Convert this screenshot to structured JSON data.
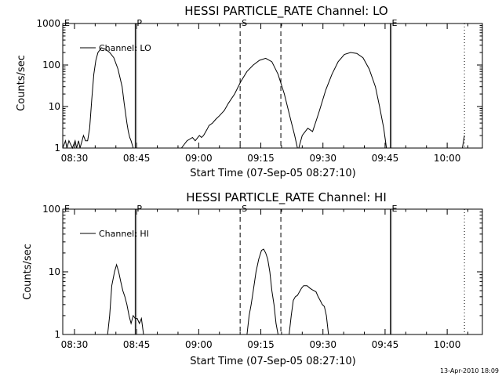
{
  "footer": {
    "date": "13-Apr-2010 18:09"
  },
  "chart_data": [
    {
      "type": "line",
      "title": "HESSI PARTICLE_RATE Channel: LO",
      "xlabel": "Start Time (07-Sep-05 08:27:10)",
      "ylabel": "Counts/sec",
      "yscale": "log",
      "ylim": [
        1,
        1000
      ],
      "xlim": [
        "08:27:10",
        "10:08:30"
      ],
      "x_ticks": [
        "08:30",
        "08:45",
        "09:00",
        "09:15",
        "09:30",
        "09:45",
        "10:00"
      ],
      "y_ticks": [
        "1",
        "10",
        "100",
        "1000"
      ],
      "legend": {
        "entries": [
          "Channel: LO"
        ],
        "position": "top-left"
      },
      "grid": false,
      "markers": [
        {
          "label": "E",
          "time": "08:27:10",
          "style": "solid"
        },
        {
          "label": "P",
          "time": "08:44:40",
          "style": "solid"
        },
        {
          "label": "S",
          "time": "09:10:00",
          "style": "dashed"
        },
        {
          "label": "",
          "time": "09:19:50",
          "style": "dashed"
        },
        {
          "label": "E",
          "time": "09:46:15",
          "style": "solid"
        },
        {
          "label": "",
          "time": "10:04:10",
          "style": "dotted"
        }
      ],
      "series": [
        {
          "name": "Channel: LO",
          "segments": [
            [
              [
                "08:27:10",
                1
              ],
              [
                "08:27:50",
                1.5
              ],
              [
                "08:28:10",
                1
              ],
              [
                "08:28:40",
                1.5
              ],
              [
                "08:29:30",
                1
              ],
              [
                "08:30:10",
                1.5
              ],
              [
                "08:30:30",
                1
              ],
              [
                "08:31:00",
                1.5
              ],
              [
                "08:31:20",
                1
              ],
              [
                "08:31:50",
                1.5
              ],
              [
                "08:32:10",
                2
              ],
              [
                "08:32:40",
                1.5
              ],
              [
                "08:33:10",
                1.5
              ],
              [
                "08:33:40",
                3
              ],
              [
                "08:34:10",
                15
              ],
              [
                "08:34:40",
                60
              ],
              [
                "08:35:10",
                130
              ],
              [
                "08:35:40",
                200
              ],
              [
                "08:36:30",
                260
              ],
              [
                "08:37:30",
                240
              ],
              [
                "08:38:30",
                200
              ],
              [
                "08:39:30",
                150
              ],
              [
                "08:40:30",
                80
              ],
              [
                "08:41:30",
                30
              ],
              [
                "08:42:00",
                12
              ],
              [
                "08:42:40",
                4
              ],
              [
                "08:43:00",
                2.5
              ],
              [
                "08:43:20",
                1.8
              ],
              [
                "08:43:40",
                1.5
              ],
              [
                "08:44:10",
                1
              ]
            ],
            [
              [
                "08:55:50",
                1
              ],
              [
                "08:57:10",
                1.5
              ],
              [
                "08:58:30",
                1.8
              ],
              [
                "08:59:10",
                1.5
              ],
              [
                "09:00:10",
                2
              ],
              [
                "09:00:40",
                1.8
              ],
              [
                "09:01:10",
                2
              ],
              [
                "09:02:00",
                2.8
              ],
              [
                "09:02:30",
                3.5
              ],
              [
                "09:03:20",
                4
              ],
              [
                "09:04:10",
                5
              ],
              [
                "09:05:00",
                6
              ],
              [
                "09:06:10",
                8
              ],
              [
                "09:07:10",
                12
              ],
              [
                "09:08:40",
                20
              ],
              [
                "09:10:10",
                40
              ],
              [
                "09:11:40",
                70
              ],
              [
                "09:13:10",
                100
              ],
              [
                "09:14:40",
                130
              ],
              [
                "09:16:10",
                145
              ],
              [
                "09:17:40",
                120
              ],
              [
                "09:19:10",
                60
              ],
              [
                "09:20:40",
                20
              ],
              [
                "09:22:10",
                5
              ],
              [
                "09:23:10",
                2
              ],
              [
                "09:23:50",
                1
              ]
            ],
            [
              [
                "09:24:10",
                1
              ],
              [
                "09:25:00",
                2
              ],
              [
                "09:26:20",
                3
              ],
              [
                "09:27:30",
                2.5
              ],
              [
                "09:28:30",
                5
              ],
              [
                "09:29:10",
                8
              ],
              [
                "09:30:40",
                25
              ],
              [
                "09:32:10",
                60
              ],
              [
                "09:33:40",
                120
              ],
              [
                "09:35:10",
                180
              ],
              [
                "09:36:40",
                200
              ],
              [
                "09:38:10",
                190
              ],
              [
                "09:39:40",
                150
              ],
              [
                "09:41:10",
                80
              ],
              [
                "09:42:40",
                30
              ],
              [
                "09:43:40",
                10
              ],
              [
                "09:44:40",
                3
              ],
              [
                "09:45:20",
                1
              ]
            ],
            [
              [
                "10:03:40",
                1
              ],
              [
                "10:04:10",
                2
              ]
            ]
          ]
        }
      ]
    },
    {
      "type": "line",
      "title": "HESSI PARTICLE_RATE Channel: HI",
      "xlabel": "Start Time (07-Sep-05 08:27:10)",
      "ylabel": "Counts/sec",
      "yscale": "log",
      "ylim": [
        1,
        100
      ],
      "xlim": [
        "08:27:10",
        "10:08:30"
      ],
      "x_ticks": [
        "08:30",
        "08:45",
        "09:00",
        "09:15",
        "09:30",
        "09:45",
        "10:00"
      ],
      "y_ticks": [
        "1",
        "10",
        "100"
      ],
      "legend": {
        "entries": [
          "Channel: HI"
        ],
        "position": "top-left"
      },
      "grid": false,
      "markers": [
        {
          "label": "E",
          "time": "08:27:10",
          "style": "solid"
        },
        {
          "label": "P",
          "time": "08:44:40",
          "style": "solid"
        },
        {
          "label": "S",
          "time": "09:10:00",
          "style": "dashed"
        },
        {
          "label": "",
          "time": "09:19:50",
          "style": "dashed"
        },
        {
          "label": "E",
          "time": "09:46:15",
          "style": "solid"
        },
        {
          "label": "",
          "time": "10:04:10",
          "style": "dotted"
        }
      ],
      "series": [
        {
          "name": "Channel: HI",
          "segments": [
            [
              [
                "08:38:00",
                1
              ],
              [
                "08:38:30",
                2
              ],
              [
                "08:39:00",
                6
              ],
              [
                "08:39:40",
                10
              ],
              [
                "08:40:10",
                13
              ],
              [
                "08:40:40",
                10
              ],
              [
                "08:41:10",
                7
              ],
              [
                "08:41:40",
                5
              ],
              [
                "08:42:10",
                4
              ],
              [
                "08:42:40",
                3
              ],
              [
                "08:43:10",
                2
              ],
              [
                "08:43:40",
                1.5
              ],
              [
                "08:44:10",
                2
              ],
              [
                "08:44:40",
                1.8
              ],
              [
                "08:45:10",
                1.8
              ],
              [
                "08:45:40",
                1.5
              ],
              [
                "08:46:10",
                1.8
              ],
              [
                "08:46:40",
                1
              ]
            ],
            [
              [
                "09:11:40",
                1
              ],
              [
                "09:12:10",
                2
              ],
              [
                "09:12:40",
                3
              ],
              [
                "09:13:10",
                5
              ],
              [
                "09:13:50",
                10
              ],
              [
                "09:14:30",
                16
              ],
              [
                "09:15:10",
                22
              ],
              [
                "09:15:40",
                23
              ],
              [
                "09:16:10",
                20
              ],
              [
                "09:16:40",
                16
              ],
              [
                "09:17:10",
                10
              ],
              [
                "09:17:40",
                5
              ],
              [
                "09:18:10",
                3
              ],
              [
                "09:18:40",
                1.5
              ],
              [
                "09:19:10",
                1
              ]
            ],
            [
              [
                "09:21:50",
                1
              ],
              [
                "09:22:20",
                2
              ],
              [
                "09:22:50",
                3.5
              ],
              [
                "09:23:20",
                4
              ],
              [
                "09:23:50",
                4.2
              ],
              [
                "09:24:20",
                4.8
              ],
              [
                "09:24:50",
                5.5
              ],
              [
                "09:25:20",
                6
              ],
              [
                "09:26:10",
                6
              ],
              [
                "09:26:50",
                5.5
              ],
              [
                "09:27:20",
                5.2
              ],
              [
                "09:27:50",
                5
              ],
              [
                "09:28:20",
                4.8
              ],
              [
                "09:28:50",
                4
              ],
              [
                "09:29:20",
                3.5
              ],
              [
                "09:29:50",
                3
              ],
              [
                "09:30:20",
                2.8
              ],
              [
                "09:30:50",
                2
              ],
              [
                "09:31:20",
                1
              ]
            ]
          ]
        }
      ]
    }
  ]
}
